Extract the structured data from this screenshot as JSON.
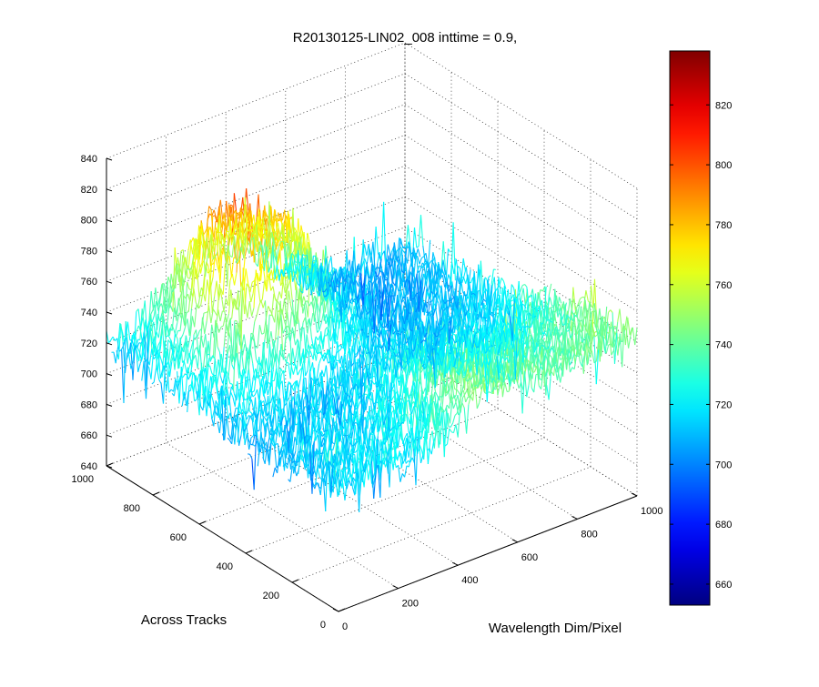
{
  "chart_data": {
    "type": "surface",
    "title": "R20130125-LIN02_008 inttime = 0.9,",
    "xlabel": "Wavelength Dim/Pixel",
    "ylabel": "Across Tracks",
    "zlabel": "",
    "xlim": [
      0,
      1000
    ],
    "ylim": [
      0,
      1000
    ],
    "zlim": [
      640,
      840
    ],
    "x_ticks": [
      "0",
      "200",
      "400",
      "600",
      "800",
      "1000"
    ],
    "y_ticks": [
      "0",
      "200",
      "400",
      "600",
      "800",
      "1000"
    ],
    "z_ticks": [
      "640",
      "660",
      "680",
      "700",
      "720",
      "740",
      "760",
      "780",
      "800",
      "820",
      "840"
    ],
    "grid": true,
    "colormap": "jet",
    "colorbar": {
      "range": [
        653,
        838
      ],
      "ticks": [
        "660",
        "680",
        "700",
        "720",
        "740",
        "760",
        "780",
        "800",
        "820"
      ]
    },
    "x": [
      0,
      100,
      200,
      300,
      400,
      500,
      600,
      700,
      800,
      900,
      1000
    ],
    "y": [
      0,
      100,
      200,
      300,
      400,
      500,
      600,
      700,
      800,
      900,
      1000
    ],
    "z": [
      [
        718,
        720,
        722,
        725,
        735,
        752,
        748,
        744,
        742,
        746,
        748
      ],
      [
        716,
        718,
        720,
        722,
        730,
        748,
        742,
        740,
        738,
        742,
        745
      ],
      [
        714,
        716,
        718,
        720,
        726,
        742,
        738,
        736,
        735,
        738,
        742
      ],
      [
        712,
        715,
        717,
        718,
        722,
        735,
        732,
        730,
        730,
        733,
        738
      ],
      [
        712,
        714,
        716,
        716,
        718,
        726,
        724,
        722,
        722,
        725,
        730
      ],
      [
        714,
        716,
        718,
        716,
        715,
        720,
        718,
        716,
        715,
        718,
        722
      ],
      [
        718,
        722,
        728,
        735,
        722,
        718,
        716,
        714,
        712,
        715,
        718
      ],
      [
        720,
        726,
        745,
        762,
        752,
        735,
        716,
        712,
        710,
        712,
        715
      ],
      [
        722,
        730,
        765,
        790,
        782,
        770,
        725,
        712,
        708,
        710,
        712
      ],
      [
        720,
        726,
        760,
        792,
        780,
        772,
        728,
        714,
        708,
        709,
        710
      ],
      [
        718,
        722,
        740,
        760,
        752,
        745,
        722,
        712,
        708,
        708,
        708
      ]
    ],
    "noise_amplitude": 12
  }
}
